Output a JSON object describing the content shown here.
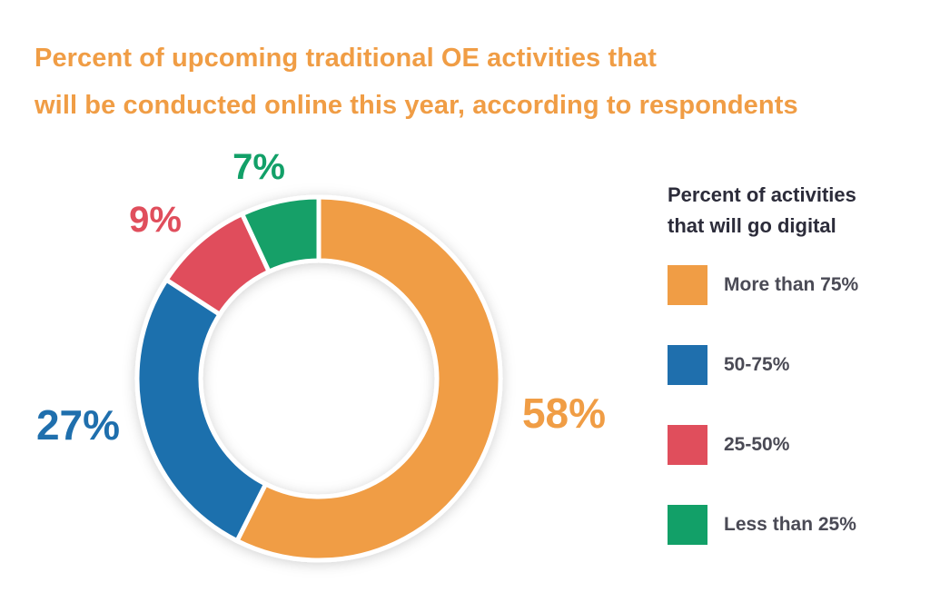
{
  "title": {
    "line1": "Percent of upcoming traditional OE activities that",
    "line2": "will be conducted online this year, according to respondents"
  },
  "chart_data": {
    "type": "pie",
    "variant": "donut",
    "legend_title_line1": "Percent of activities",
    "legend_title_line2": "that will go digital",
    "legend_placement": "right",
    "slices": [
      {
        "name": "More than 75%",
        "value": 58,
        "label": "58%",
        "color": "#f09d45"
      },
      {
        "name": "50-75%",
        "value": 27,
        "label": "27%",
        "color": "#1f6fad"
      },
      {
        "name": "25-50%",
        "value": 9,
        "label": "9%",
        "color": "#e04e5c"
      },
      {
        "name": "Less than 25%",
        "value": 7,
        "label": "7%",
        "color": "#12a068"
      }
    ]
  }
}
